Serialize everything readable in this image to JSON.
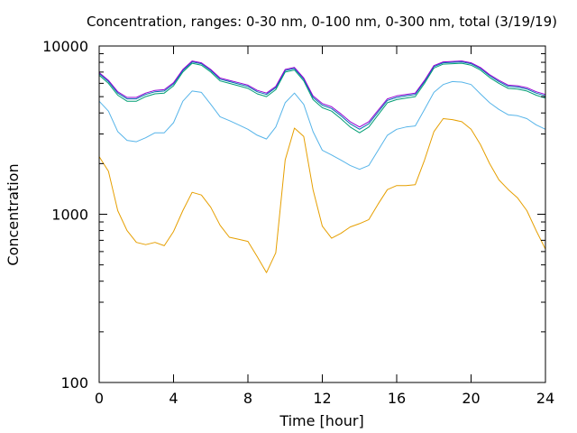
{
  "chart_data": {
    "type": "line",
    "title": "Concentration, ranges: 0-30 nm, 0-100 nm, 0-300 nm, total (3/19/19)",
    "xlabel": "Time [hour]",
    "ylabel": "Concentration",
    "xlim": [
      0,
      24
    ],
    "ylim": [
      100,
      10000
    ],
    "yscale": "log",
    "grid": false,
    "x_ticks": [
      0,
      4,
      8,
      12,
      16,
      20,
      24
    ],
    "y_ticks": [
      100,
      1000,
      10000
    ],
    "x_tick_labels": [
      "0",
      "4",
      "8",
      "12",
      "16",
      "20",
      "24"
    ],
    "y_tick_labels": [
      "100",
      "1000",
      "10000"
    ],
    "x": [
      0,
      0.5,
      1,
      1.5,
      2,
      2.5,
      3,
      3.5,
      4,
      4.5,
      5,
      5.5,
      6,
      6.5,
      7,
      7.5,
      8,
      8.5,
      9,
      9.5,
      10,
      10.5,
      11,
      11.5,
      12,
      12.5,
      13,
      13.5,
      14,
      14.5,
      15,
      15.5,
      16,
      16.5,
      17,
      17.5,
      18,
      18.5,
      19,
      19.5,
      20,
      20.5,
      21,
      21.5,
      22,
      22.5,
      23,
      23.5,
      24
    ],
    "series": [
      {
        "name": "",
        "color": "#e69f00",
        "values": [
          2200,
          1800,
          1050,
          800,
          680,
          660,
          680,
          650,
          790,
          1050,
          1350,
          1300,
          1100,
          860,
          730,
          710,
          690,
          560,
          450,
          590,
          2100,
          3250,
          2900,
          1400,
          850,
          720,
          770,
          840,
          880,
          930,
          1150,
          1400,
          1480,
          1480,
          1500,
          2100,
          3100,
          3700,
          3650,
          3550,
          3200,
          2600,
          2000,
          1600,
          1400,
          1250,
          1050,
          800,
          620
        ]
      },
      {
        "name": "",
        "color": "#56b4e9",
        "values": [
          4700,
          4100,
          3100,
          2750,
          2700,
          2850,
          3050,
          3050,
          3500,
          4700,
          5400,
          5300,
          4500,
          3800,
          3600,
          3400,
          3200,
          2950,
          2800,
          3300,
          4600,
          5250,
          4500,
          3100,
          2400,
          2250,
          2100,
          1950,
          1850,
          1950,
          2400,
          2950,
          3200,
          3300,
          3350,
          4200,
          5300,
          5900,
          6150,
          6100,
          5900,
          5200,
          4600,
          4200,
          3900,
          3850,
          3700,
          3400,
          3200
        ]
      },
      {
        "name": "",
        "color": "#009e73",
        "values": [
          6700,
          6000,
          5100,
          4700,
          4700,
          5000,
          5200,
          5250,
          5800,
          7000,
          7900,
          7700,
          7000,
          6200,
          6000,
          5800,
          5600,
          5200,
          5000,
          5500,
          7000,
          7200,
          6200,
          4800,
          4300,
          4100,
          3700,
          3300,
          3050,
          3300,
          3900,
          4600,
          4800,
          4900,
          5000,
          6000,
          7400,
          7800,
          7850,
          7900,
          7700,
          7200,
          6500,
          6000,
          5600,
          5550,
          5400,
          5100,
          4900
        ]
      },
      {
        "name": "",
        "color": "#0072b2",
        "values": [
          6850,
          6150,
          5250,
          4850,
          4850,
          5150,
          5350,
          5400,
          5950,
          7150,
          8050,
          7850,
          7150,
          6350,
          6150,
          5950,
          5750,
          5350,
          5150,
          5650,
          7150,
          7350,
          6350,
          4950,
          4450,
          4250,
          3850,
          3450,
          3200,
          3450,
          4050,
          4750,
          4950,
          5050,
          5150,
          6150,
          7550,
          7950,
          8000,
          8050,
          7850,
          7350,
          6650,
          6150,
          5750,
          5700,
          5550,
          5250,
          5050
        ]
      },
      {
        "name": "",
        "color": "#9400d3",
        "values": [
          6950,
          6250,
          5350,
          4950,
          4950,
          5250,
          5450,
          5500,
          6050,
          7250,
          8150,
          7950,
          7250,
          6450,
          6250,
          6050,
          5850,
          5450,
          5250,
          5750,
          7250,
          7450,
          6450,
          5050,
          4550,
          4350,
          3950,
          3550,
          3300,
          3550,
          4150,
          4850,
          5050,
          5150,
          5250,
          6250,
          7650,
          8050,
          8100,
          8150,
          7950,
          7450,
          6750,
          6250,
          5850,
          5800,
          5650,
          5350,
          5150
        ]
      }
    ]
  }
}
